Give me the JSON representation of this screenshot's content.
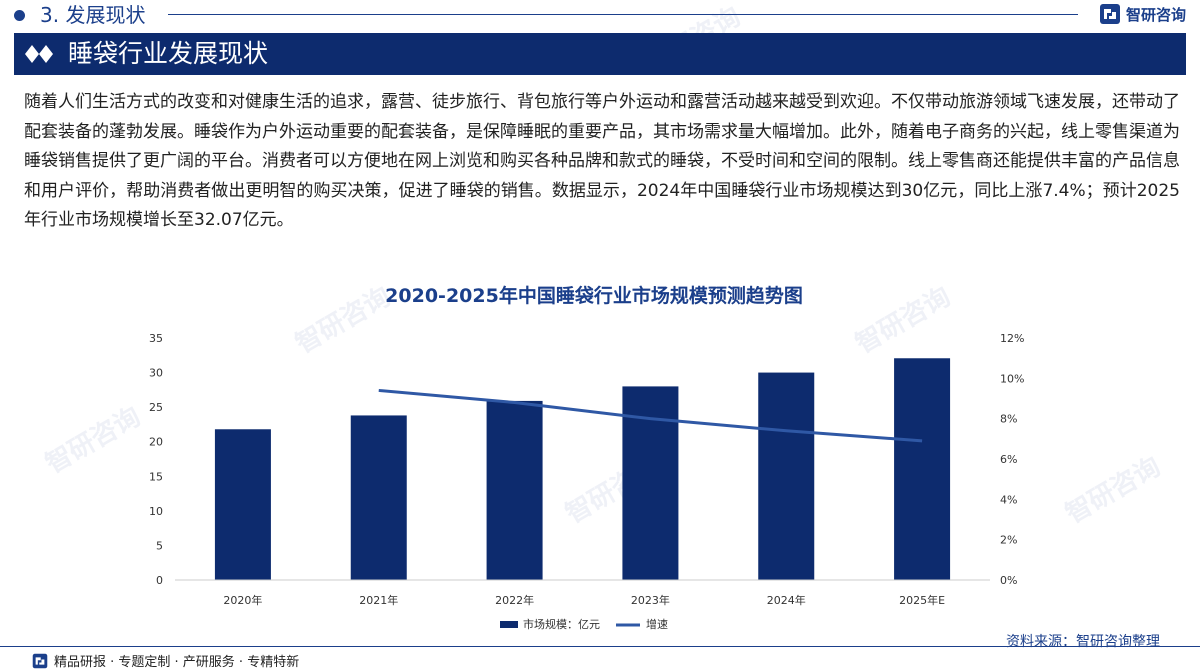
{
  "header": {
    "section_label": "3. 发展现状",
    "brand_name": "智研咨询"
  },
  "banner": {
    "title": "睡袋行业发展现状"
  },
  "body": {
    "paragraph": "随着人们生活方式的改变和对健康生活的追求，露营、徒步旅行、背包旅行等户外运动和露营活动越来越受到欢迎。不仅带动旅游领域飞速发展，还带动了配套装备的蓬勃发展。睡袋作为户外运动重要的配套装备，是保障睡眠的重要产品，其市场需求量大幅增加。此外，随着电子商务的兴起，线上零售渠道为睡袋销售提供了更广阔的平台。消费者可以方便地在网上浏览和购买各种品牌和款式的睡袋，不受时间和空间的限制。线上零售商还能提供丰富的产品信息和用户评价，帮助消费者做出更明智的购买决策，促进了睡袋的销售。数据显示，2024年中国睡袋行业市场规模达到30亿元，同比上涨7.4%；预计2025年行业市场规模增长至32.07亿元。"
  },
  "chart_data": {
    "type": "bar",
    "title": "2020-2025年中国睡袋行业市场规模预测趋势图",
    "categories": [
      "2020年",
      "2021年",
      "2022年",
      "2023年",
      "2024年",
      "2025年E"
    ],
    "series": [
      {
        "name": "市场规模：亿元",
        "type": "bar",
        "axis": "left",
        "color": "#0d2b6e",
        "values": [
          21.8,
          23.8,
          25.9,
          28.0,
          30.0,
          32.07
        ]
      },
      {
        "name": "增速",
        "type": "line",
        "axis": "right",
        "color": "#2f58a5",
        "values": [
          null,
          9.4,
          8.8,
          8.0,
          7.4,
          6.9
        ]
      }
    ],
    "y_left": {
      "min": 0,
      "max": 35,
      "ticks": [
        "0",
        "5",
        "10",
        "15",
        "20",
        "25",
        "30",
        "35"
      ]
    },
    "y_right": {
      "min": 0,
      "max": 12,
      "ticks": [
        "0%",
        "2%",
        "4%",
        "6%",
        "8%",
        "10%",
        "12%"
      ]
    },
    "legend_position": "bottom-center",
    "grid": false
  },
  "footer": {
    "tagline": "精品研报 · 专题定制 · 产研服务 · 专精特新",
    "source": "资料来源：智研咨询整理"
  },
  "watermark_text": "智研咨询"
}
